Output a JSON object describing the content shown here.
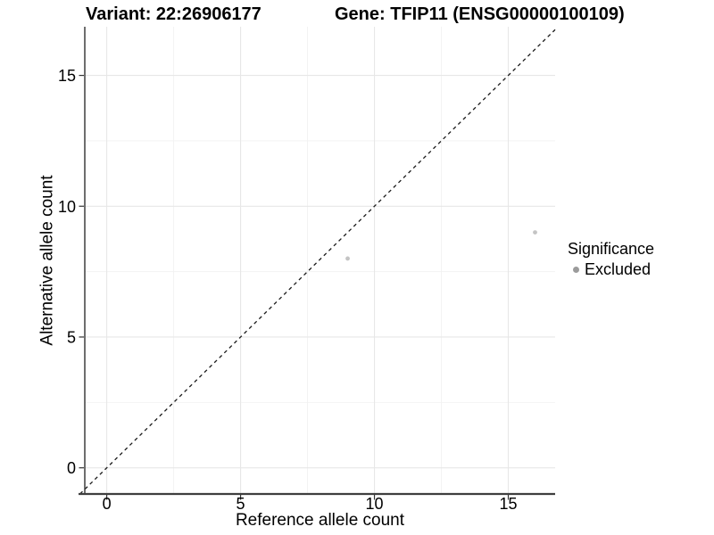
{
  "titles": {
    "variant": "Variant: 22:26906177",
    "gene": "Gene: TFIP11 (ENSG00000100109)"
  },
  "legend": {
    "title": "Significance",
    "items": [
      {
        "label": "Excluded",
        "key_color": "#9b9b9b"
      }
    ]
  },
  "colors": {
    "point": "#c4c4c4",
    "grid_major": "#e7e7e7",
    "grid_minor": "#f2f2f2",
    "axis_line": "#3f3f3f",
    "tick_mark": "#333333",
    "tick_text": "#000000",
    "identity_line": "#1a1a1a",
    "background": "#ffffff"
  },
  "chart_data": {
    "type": "scatter",
    "xlabel": "Reference allele count",
    "ylabel": "Alternative allele count",
    "xlim": [
      -0.82,
      16.75
    ],
    "ylim": [
      -1.0,
      16.86
    ],
    "x_ticks": [
      0,
      5,
      10,
      15
    ],
    "y_ticks": [
      0,
      5,
      10,
      15
    ],
    "x_minor_ticks": [
      2.5,
      7.5,
      12.5
    ],
    "y_minor_ticks": [
      2.5,
      7.5,
      12.5
    ],
    "grid": "major+minor",
    "legend_position": "right",
    "series": [
      {
        "name": "Excluded",
        "color": "#c4c4c4",
        "points": [
          {
            "x": 9,
            "y": 8
          },
          {
            "x": 16,
            "y": 9
          }
        ]
      }
    ],
    "reference_line": {
      "type": "identity",
      "style": "dashed",
      "from": [
        -1.0,
        -1.0
      ],
      "to": [
        16.75,
        16.75
      ]
    }
  }
}
